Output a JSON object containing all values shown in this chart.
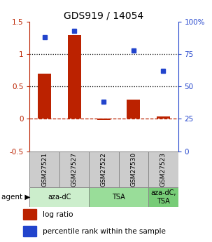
{
  "title": "GDS919 / 14054",
  "samples": [
    "GSM27521",
    "GSM27527",
    "GSM27522",
    "GSM27530",
    "GSM27523"
  ],
  "log_ratios": [
    0.7,
    1.3,
    -0.02,
    0.3,
    0.04
  ],
  "percentile_ranks": [
    88,
    93,
    38,
    78,
    62
  ],
  "bar_color": "#bb2200",
  "dot_color": "#2244cc",
  "groups": [
    {
      "label": "aza-dC",
      "span": [
        0,
        2
      ],
      "color": "#cceecc"
    },
    {
      "label": "TSA",
      "span": [
        2,
        4
      ],
      "color": "#99dd99"
    },
    {
      "label": "aza-dC,\nTSA",
      "span": [
        4,
        5
      ],
      "color": "#77cc77"
    }
  ],
  "ylim_left": [
    -0.5,
    1.5
  ],
  "ylim_right": [
    0,
    100
  ],
  "yticks_left": [
    -0.5,
    0.0,
    0.5,
    1.0,
    1.5
  ],
  "yticks_right": [
    0,
    25,
    50,
    75,
    100
  ],
  "ytick_labels_left": [
    "-0.5",
    "0",
    "0.5",
    "1",
    "1.5"
  ],
  "ytick_labels_right": [
    "0",
    "25",
    "50",
    "75",
    "100%"
  ],
  "hlines_dotted": [
    0.5,
    1.0
  ],
  "hline_dashed": 0.0,
  "legend_items": [
    {
      "label": "log ratio",
      "color": "#bb2200"
    },
    {
      "label": "percentile rank within the sample",
      "color": "#2244cc"
    }
  ]
}
